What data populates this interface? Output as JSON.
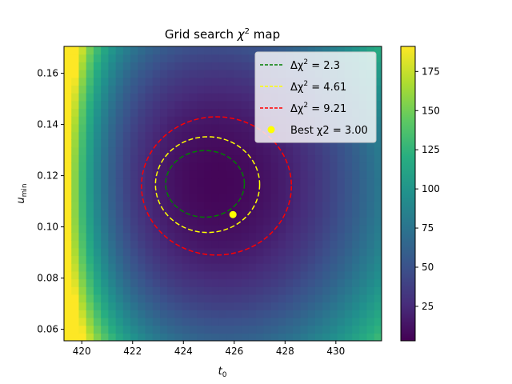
{
  "chart_data": {
    "type": "heatmap",
    "title_main": "Grid search ",
    "title_chi": "χ",
    "title_exp": "2",
    "title_tail": " map",
    "xlabel_base": "t",
    "xlabel_sub": "0",
    "ylabel_base": "u",
    "ylabel_sub": "min",
    "xlim": [
      419.3,
      431.8
    ],
    "ylim": [
      0.0555,
      0.1705
    ],
    "xticks": [
      420,
      422,
      424,
      426,
      428,
      430
    ],
    "yticks": [
      0.06,
      0.08,
      0.1,
      0.12,
      0.14,
      0.16
    ],
    "colorbar": {
      "min": 3.0,
      "max": 191,
      "ticks": [
        25,
        50,
        75,
        100,
        125,
        150,
        175
      ],
      "colormap": "viridis"
    },
    "heatmap_grid": {
      "nx": 43,
      "ny": 38
    },
    "minimum_region": {
      "t0": 425.0,
      "umin": 0.116,
      "chi2_min": 3.0
    },
    "contours": [
      {
        "label_prefix": "Δχ",
        "label_exp": "2",
        "label_value": " = 2.3",
        "color": "#008000",
        "center": [
          424.85,
          0.1168
        ],
        "half_width": 1.55,
        "half_height": 0.013
      },
      {
        "label_prefix": "Δχ",
        "label_exp": "2",
        "label_value": " = 4.61",
        "color": "#ffff00",
        "center": [
          424.95,
          0.1165
        ],
        "half_width": 2.05,
        "half_height": 0.0187
      },
      {
        "label_prefix": "Δχ",
        "label_exp": "2",
        "label_value": " = 9.21",
        "color": "#ff0000",
        "center": [
          425.3,
          0.116
        ],
        "half_width": 2.95,
        "half_height": 0.027
      }
    ],
    "best_point": {
      "t0": 425.95,
      "umin": 0.1048,
      "label": "Best χ2 = 3.00",
      "color": "#ffff00"
    },
    "legend_position": "upper right"
  }
}
